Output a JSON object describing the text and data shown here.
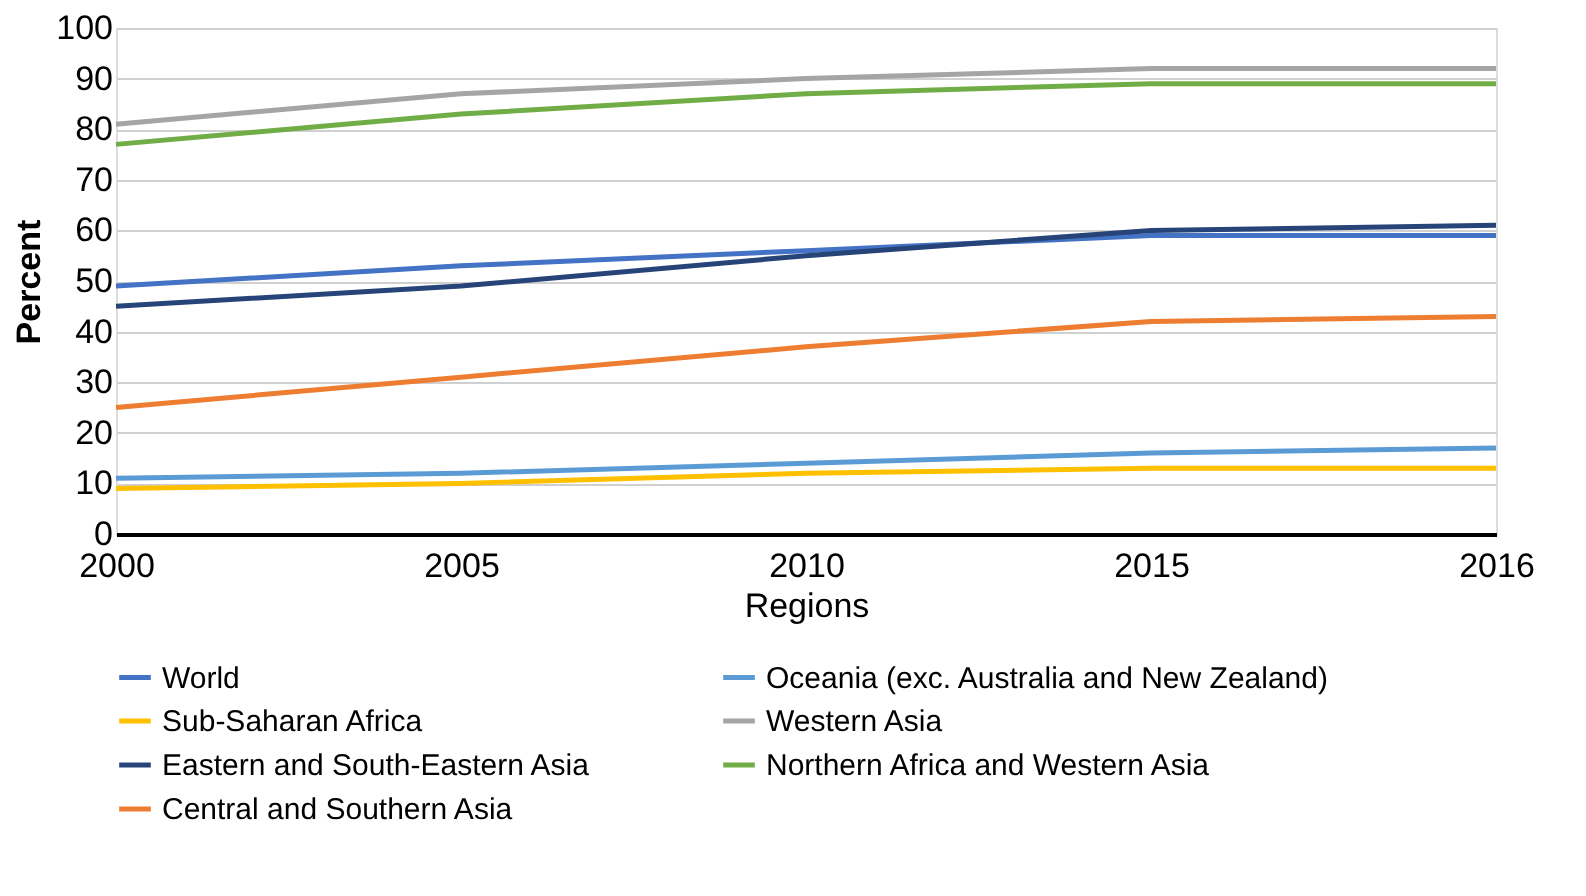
{
  "chart_data": {
    "type": "line",
    "xlabel": "Regions",
    "ylabel": "Percent",
    "categories": [
      "2000",
      "2005",
      "2010",
      "2015",
      "2016"
    ],
    "ylim": [
      0,
      100
    ],
    "yticks": [
      0,
      10,
      20,
      30,
      40,
      50,
      60,
      70,
      80,
      90,
      100
    ],
    "grid": "y",
    "legend": "bottom",
    "marker": "none",
    "line_style": "solid",
    "series": [
      {
        "name": "World",
        "color": "#4472c4",
        "values": [
          49,
          53,
          56,
          59,
          59
        ]
      },
      {
        "name": "Sub-Saharan Africa",
        "color": "#ffc000",
        "values": [
          9,
          10,
          12,
          13,
          13
        ]
      },
      {
        "name": "Eastern and South-Eastern Asia",
        "color": "#264478",
        "values": [
          45,
          49,
          55,
          60,
          61
        ]
      },
      {
        "name": "Central and Southern Asia",
        "color": "#ed7d31",
        "values": [
          25,
          31,
          37,
          42,
          43
        ]
      },
      {
        "name": "Oceania (exc. Australia and New Zealand)",
        "color": "#5b9bd5",
        "values": [
          11,
          12,
          14,
          16,
          17
        ]
      },
      {
        "name": "Western Asia",
        "color": "#a5a5a5",
        "values": [
          81,
          87,
          90,
          92,
          92
        ]
      },
      {
        "name": "Northern Africa and Western Asia",
        "color": "#70ad47",
        "values": [
          77,
          83,
          87,
          89,
          89
        ]
      }
    ]
  }
}
